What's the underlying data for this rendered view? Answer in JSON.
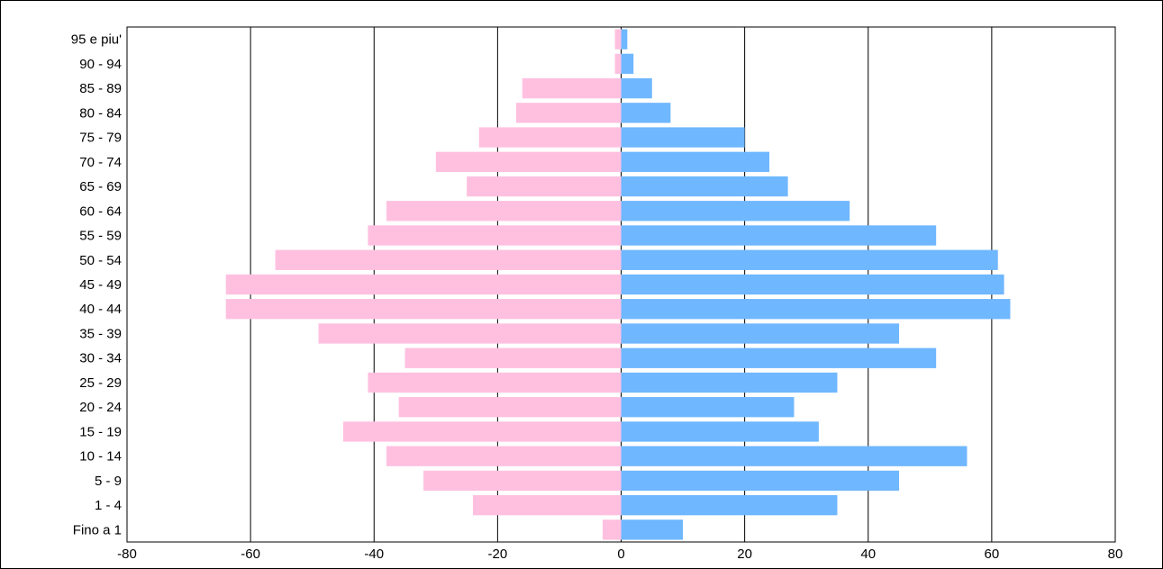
{
  "chart_data": {
    "type": "bar",
    "orientation": "horizontal",
    "layout": "population-pyramid",
    "title": "",
    "xlabel": "",
    "ylabel": "",
    "xlim": [
      -80,
      80
    ],
    "x_ticks": [
      -80,
      -60,
      -40,
      -20,
      0,
      20,
      40,
      60,
      80
    ],
    "x_tick_labels": [
      "-80",
      "-60",
      "-40",
      "-20",
      "0",
      "20",
      "40",
      "60",
      "80"
    ],
    "grid": "vertical",
    "categories": [
      "Fino a 1",
      "1 - 4",
      "5 - 9",
      "10 - 14",
      "15 - 19",
      "20 - 24",
      "25 - 29",
      "30 - 34",
      "35 - 39",
      "40 - 44",
      "45 - 49",
      "50 - 54",
      "55 - 59",
      "60 - 64",
      "65 - 69",
      "70 - 74",
      "75 - 79",
      "80 - 84",
      "85 - 89",
      "90 - 94",
      "95 e piu'"
    ],
    "series": [
      {
        "color": "#ffc0e0",
        "values": [
          -3,
          -24,
          -32,
          -38,
          -45,
          -36,
          -41,
          -35,
          -49,
          -64,
          -64,
          -56,
          -41,
          -38,
          -25,
          -30,
          -23,
          -17,
          -16,
          -1,
          -1
        ]
      },
      {
        "color": "#6fb7ff",
        "values": [
          10,
          35,
          45,
          56,
          32,
          28,
          35,
          51,
          45,
          63,
          62,
          61,
          51,
          37,
          27,
          24,
          20,
          8,
          5,
          2,
          1
        ]
      }
    ]
  }
}
